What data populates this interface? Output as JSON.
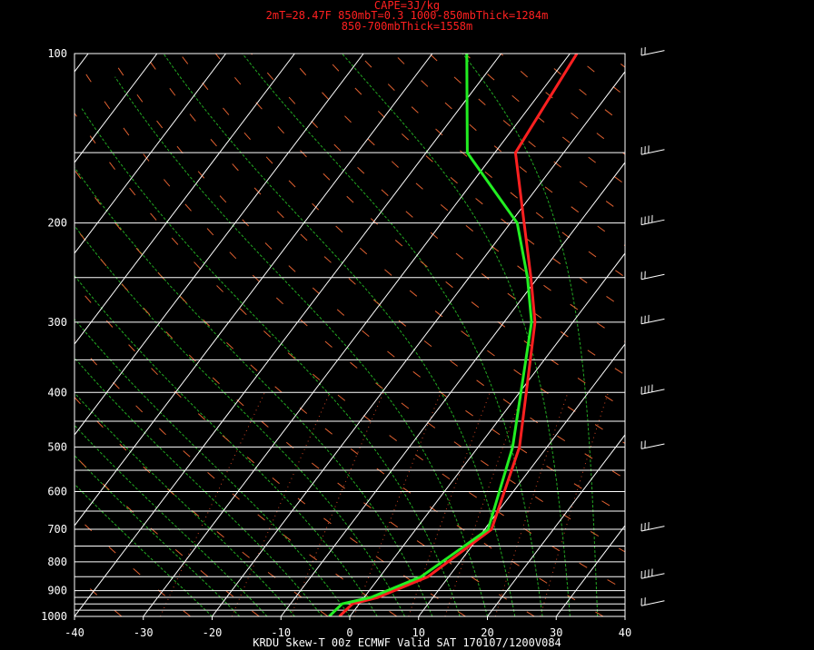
{
  "header": {
    "line1": "CAPE=3J/kg",
    "line2": "2mT=28.47F 850mbT=0.3 1000-850mbThick=1284m",
    "line3": "850-700mbThick=1558m"
  },
  "footer": {
    "text": "KRDU Skew-T 00z ECMWF Valid SAT 170107/1200V084"
  },
  "colors": {
    "temperature": "#ff2020",
    "dewpoint": "#22ee22",
    "grid": "#ffffff",
    "dry_adiabat": "#e06030",
    "moist_adiabat": "#22aa22",
    "mixing_ratio": "#cc4422"
  },
  "chart_data": {
    "type": "line",
    "title": "",
    "xlabel": "",
    "ylabel": "",
    "xlim": [
      -40,
      40
    ],
    "ylim": [
      1000,
      100
    ],
    "y_scale": "log",
    "x_ticks": [
      "-40",
      "-30",
      "-20",
      "-10",
      "0",
      "10",
      "20",
      "30",
      "40"
    ],
    "y_ticks": [
      "100",
      "200",
      "300",
      "400",
      "500",
      "600",
      "700",
      "800",
      "900",
      "1000"
    ],
    "y_tick_values": [
      100,
      200,
      300,
      400,
      500,
      600,
      700,
      800,
      900,
      1000
    ],
    "isobars": [
      100,
      150,
      200,
      250,
      300,
      350,
      400,
      450,
      500,
      550,
      600,
      650,
      700,
      750,
      800,
      850,
      900,
      925,
      950,
      975,
      1000
    ],
    "series": [
      {
        "key": "temperature",
        "points": [
          [
            1000,
            -1.5
          ],
          [
            950,
            -1
          ],
          [
            925,
            2
          ],
          [
            850,
            7
          ],
          [
            700,
            11
          ],
          [
            500,
            6
          ],
          [
            300,
            -5.5
          ],
          [
            250,
            -11
          ],
          [
            200,
            -18
          ],
          [
            150,
            -27
          ],
          [
            100,
            -29
          ]
        ]
      },
      {
        "key": "dewpoint",
        "points": [
          [
            1000,
            -3
          ],
          [
            950,
            -2.5
          ],
          [
            925,
            1
          ],
          [
            850,
            6
          ],
          [
            700,
            10.5
          ],
          [
            500,
            5
          ],
          [
            300,
            -6
          ],
          [
            250,
            -11.5
          ],
          [
            200,
            -19
          ],
          [
            150,
            -34
          ],
          [
            100,
            -45
          ]
        ]
      }
    ],
    "wind_barb_levels": [
      100,
      150,
      200,
      250,
      300,
      400,
      500,
      700,
      850,
      950
    ]
  }
}
